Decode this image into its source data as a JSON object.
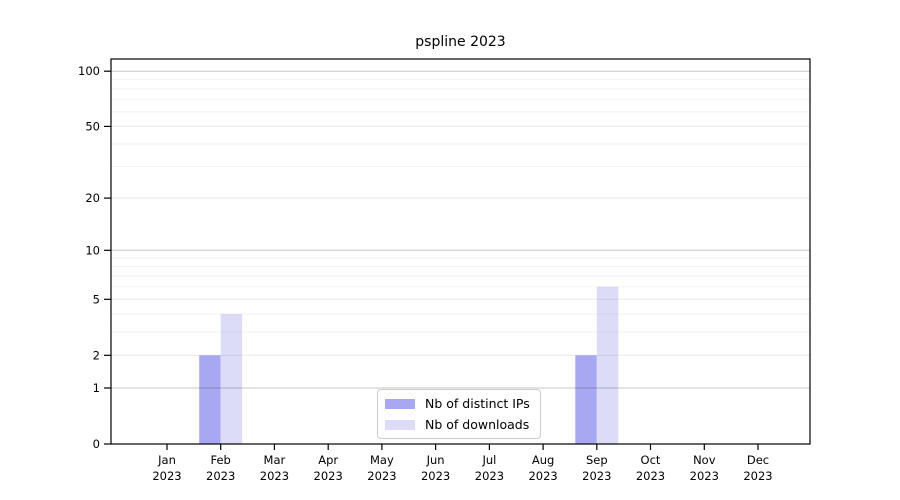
{
  "chart_data": {
    "type": "bar",
    "title": "pspline 2023",
    "categories": [
      "Jan",
      "Feb",
      "Mar",
      "Apr",
      "May",
      "Jun",
      "Jul",
      "Aug",
      "Sep",
      "Oct",
      "Nov",
      "Dec"
    ],
    "year_label": "2023",
    "series": [
      {
        "name": "Nb of distinct IPs",
        "color": "#a8a8f2",
        "values": [
          0,
          2,
          0,
          0,
          0,
          0,
          0,
          0,
          2,
          0,
          0,
          0
        ]
      },
      {
        "name": "Nb of downloads",
        "color": "#dcdcf8",
        "values": [
          0,
          4,
          0,
          0,
          0,
          0,
          0,
          0,
          6,
          0,
          0,
          0
        ]
      }
    ],
    "xlabel": "",
    "ylabel": "",
    "y_axis": {
      "ticks": [
        0,
        1,
        2,
        5,
        10,
        20,
        50,
        100
      ],
      "minor_gridlines": [
        3,
        4,
        6,
        7,
        8,
        9,
        30,
        40,
        60,
        70,
        80,
        90
      ],
      "scale": "log10(1+value)",
      "ylim": [
        0,
        117
      ]
    },
    "legend_position": "lower center",
    "grid": "horizontal"
  },
  "colors": {
    "decade_gridline": "rgba(0,0,0,0.22)",
    "labeled_gridline": "rgba(0,0,0,0.09)",
    "minor_gridline": "rgba(0,0,0,0.05)",
    "axis": "#000000",
    "tick_label": "#000000"
  }
}
